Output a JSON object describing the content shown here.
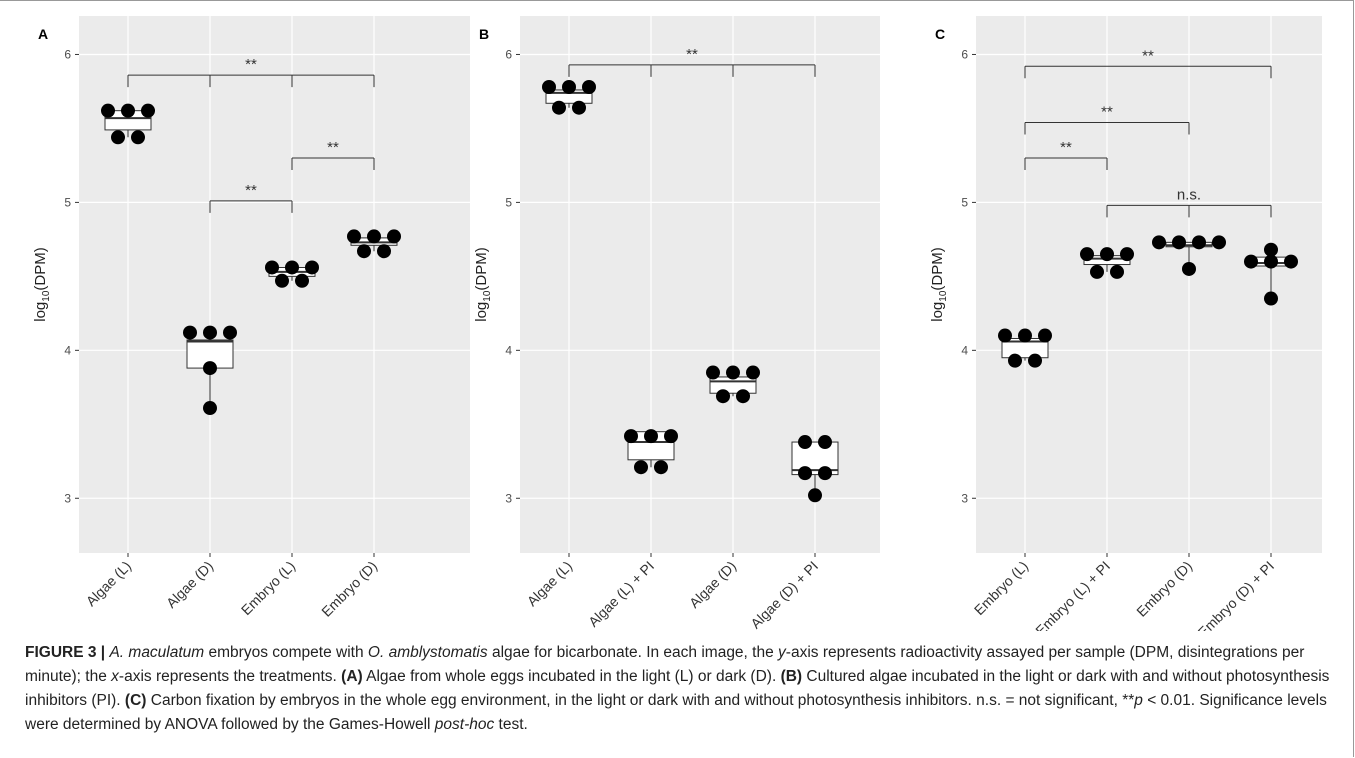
{
  "charts": [
    {
      "type": "box",
      "panel": "A",
      "y_label": [
        "log",
        "10",
        "(DPM)"
      ],
      "ylim": [
        2.63,
        6.26
      ],
      "yticks": [
        3,
        4,
        5,
        6
      ],
      "categories": [
        "Algae (L)",
        "Algae (D)",
        "Embryo (L)",
        "Embryo (D)"
      ],
      "boxes": [
        {
          "low": 5.44,
          "q1": 5.49,
          "median": 5.57,
          "q3": 5.62,
          "high": 5.62,
          "points": [
            5.62,
            5.62,
            5.62,
            5.44,
            5.44
          ]
        },
        {
          "low": 3.61,
          "q1": 3.88,
          "median": 4.06,
          "q3": 4.07,
          "high": 4.12,
          "points": [
            4.12,
            4.12,
            4.12,
            3.88,
            3.61
          ]
        },
        {
          "low": 4.47,
          "q1": 4.5,
          "median": 4.53,
          "q3": 4.56,
          "high": 4.56,
          "points": [
            4.56,
            4.56,
            4.56,
            4.47,
            4.47
          ]
        },
        {
          "low": 4.67,
          "q1": 4.71,
          "median": 4.73,
          "q3": 4.76,
          "high": 4.77,
          "points": [
            4.77,
            4.77,
            4.77,
            4.67,
            4.67
          ]
        }
      ],
      "brackets": [
        {
          "from": 0,
          "to": [
            1,
            2,
            3
          ],
          "y": 5.86,
          "label": "**"
        },
        {
          "from": 2,
          "to": [
            3
          ],
          "y": 5.3,
          "label": "**"
        },
        {
          "from": 1,
          "to": [
            2
          ],
          "y": 5.01,
          "label": "**"
        }
      ]
    },
    {
      "type": "box",
      "panel": "B",
      "y_label": [
        "log",
        "10",
        "(DPM)"
      ],
      "ylim": [
        2.63,
        6.26
      ],
      "yticks": [
        3,
        4,
        5,
        6
      ],
      "categories": [
        "Algae (L)",
        "Algae (L) + PI",
        "Algae (D)",
        "Algae (D) + PI"
      ],
      "boxes": [
        {
          "low": 5.64,
          "q1": 5.67,
          "median": 5.74,
          "q3": 5.76,
          "high": 5.78,
          "points": [
            5.78,
            5.78,
            5.78,
            5.64,
            5.64
          ]
        },
        {
          "low": 3.21,
          "q1": 3.26,
          "median": 3.38,
          "q3": 3.45,
          "high": 3.45,
          "points": [
            3.42,
            3.42,
            3.42,
            3.21,
            3.21
          ]
        },
        {
          "low": 3.69,
          "q1": 3.71,
          "median": 3.79,
          "q3": 3.82,
          "high": 3.85,
          "points": [
            3.85,
            3.85,
            3.85,
            3.69,
            3.69
          ]
        },
        {
          "low": 3.02,
          "q1": 3.16,
          "median": 3.19,
          "q3": 3.38,
          "high": 3.38,
          "points": [
            3.38,
            3.38,
            3.17,
            3.17,
            3.02
          ]
        }
      ],
      "brackets": [
        {
          "from": 0,
          "to": [
            1,
            2,
            3
          ],
          "y": 5.93,
          "label": "**"
        }
      ]
    },
    {
      "type": "box",
      "panel": "C",
      "y_label": [
        "log",
        "10",
        "(DPM)"
      ],
      "ylim": [
        2.63,
        6.26
      ],
      "yticks": [
        3,
        4,
        5,
        6
      ],
      "categories": [
        "Embryo (L)",
        "Embryo (L) + PI",
        "Embryo (D)",
        "Embryo (D) + PI"
      ],
      "boxes": [
        {
          "low": 3.93,
          "q1": 3.95,
          "median": 4.06,
          "q3": 4.08,
          "high": 4.1,
          "points": [
            4.1,
            4.1,
            4.1,
            3.93,
            3.93
          ]
        },
        {
          "low": 4.53,
          "q1": 4.58,
          "median": 4.62,
          "q3": 4.64,
          "high": 4.65,
          "points": [
            4.65,
            4.65,
            4.65,
            4.53,
            4.53
          ]
        },
        {
          "low": 4.55,
          "q1": 4.7,
          "median": 4.71,
          "q3": 4.73,
          "high": 4.73,
          "points": [
            4.73,
            4.73,
            4.73,
            4.73,
            4.55
          ]
        },
        {
          "low": 4.35,
          "q1": 4.57,
          "median": 4.59,
          "q3": 4.63,
          "high": 4.68,
          "points": [
            4.68,
            4.6,
            4.6,
            4.6,
            4.35
          ]
        }
      ],
      "brackets": [
        {
          "from": 0,
          "to": [
            3
          ],
          "y": 5.92,
          "label": "**"
        },
        {
          "from": 0,
          "to": [
            2
          ],
          "y": 5.54,
          "label": "**"
        },
        {
          "from": 0,
          "to": [
            1
          ],
          "y": 5.3,
          "label": "**"
        },
        {
          "from": 1,
          "to": [
            2,
            3
          ],
          "y": 4.98,
          "label": "n.s."
        }
      ]
    }
  ],
  "caption": [
    "FIGURE 3 |",
    " ",
    "A. maculatum",
    " embryos compete with ",
    "O. amblystomatis",
    " algae for bicarbonate. In each image, the ",
    "y",
    "-axis represents radioactivity assayed per sample (DPM, disintegrations per minute); the ",
    "x",
    "-axis represents the treatments. ",
    "(A)",
    " Algae from whole eggs incubated in the light (L) or dark (D). ",
    "(B)",
    " Cultured algae incubated in the light or dark with and without photosynthesis inhibitors (PI). ",
    "(C)",
    " Carbon fixation by embryos in the whole egg environment, in the light or dark with and without photosynthesis inhibitors. n.s. = not significant, **",
    "p",
    " < 0.01. Significance levels were determined by ANOVA followed by the Games-Howell ",
    "post-hoc",
    " test."
  ]
}
